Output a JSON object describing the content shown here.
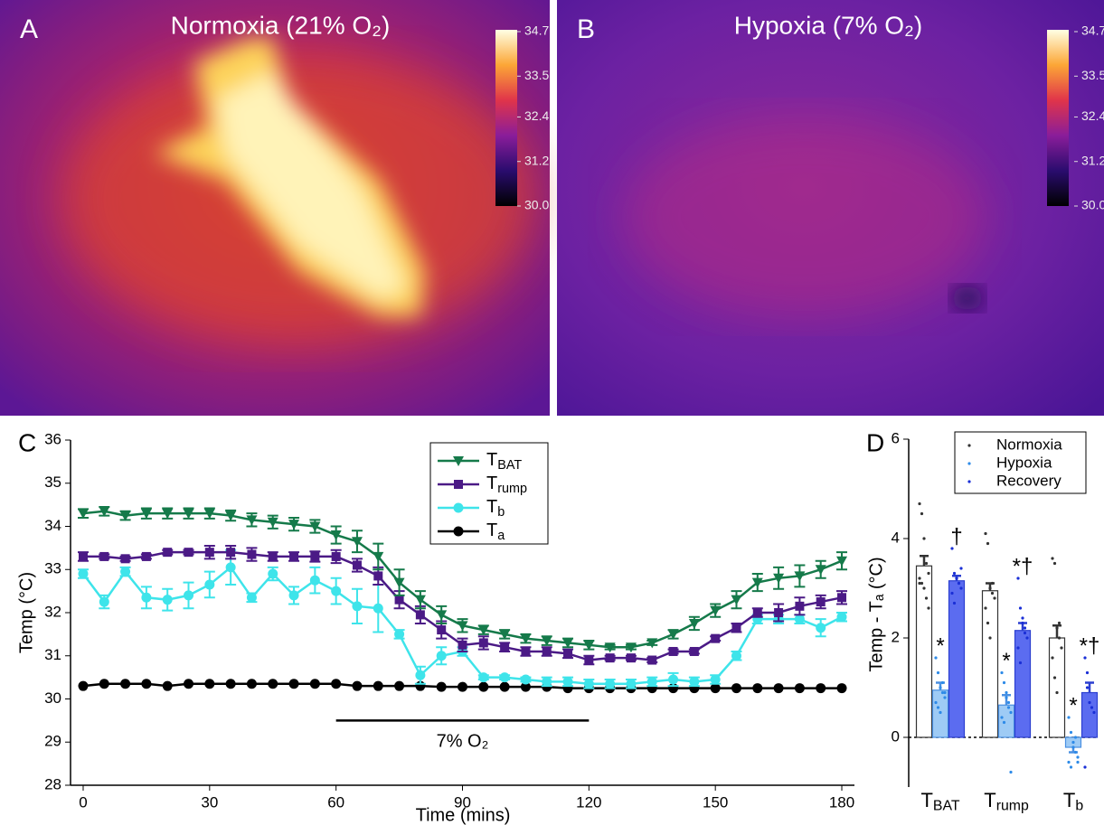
{
  "chart_data": [
    {
      "type": "thermal-image",
      "panel_label": "A",
      "title": "Normoxia (21% O₂)",
      "clim": [
        30,
        34.7
      ],
      "colorbar_ticks": [
        34.7,
        33.5,
        32.4,
        31.2,
        {
          "value": 30,
          "label": "30.0"
        }
      ]
    },
    {
      "type": "thermal-image",
      "panel_label": "B",
      "title": "Hypoxia (7% O₂)",
      "clim": [
        30,
        34.7
      ],
      "colorbar_ticks": [
        34.7,
        33.5,
        32.4,
        31.2,
        {
          "value": 30,
          "label": "30.0"
        }
      ]
    },
    {
      "type": "line",
      "panel_label": "C",
      "x_label": "Time (mins)",
      "y_label": "Temp (°C)",
      "xlim": [
        -3,
        183
      ],
      "xticks": [
        0,
        30,
        60,
        90,
        120,
        150,
        180
      ],
      "ylim": [
        28,
        36
      ],
      "yticks": [
        28,
        29,
        30,
        31,
        32,
        33,
        34,
        35,
        36
      ],
      "x": [
        0,
        5,
        10,
        15,
        20,
        25,
        30,
        35,
        40,
        45,
        50,
        55,
        60,
        65,
        70,
        75,
        80,
        85,
        90,
        95,
        100,
        105,
        110,
        115,
        120,
        125,
        130,
        135,
        140,
        145,
        150,
        155,
        160,
        165,
        170,
        175,
        180
      ],
      "series": [
        {
          "name": "TBAT",
          "color": "#157a4a",
          "marker": "triangle-down",
          "values": [
            34.3,
            34.35,
            34.25,
            34.3,
            34.3,
            34.3,
            34.3,
            34.25,
            34.15,
            34.1,
            34.05,
            34.0,
            33.8,
            33.65,
            33.3,
            32.7,
            32.3,
            31.95,
            31.7,
            31.6,
            31.5,
            31.4,
            31.35,
            31.3,
            31.25,
            31.2,
            31.2,
            31.3,
            31.5,
            31.75,
            32.05,
            32.3,
            32.7,
            32.8,
            32.85,
            33.0,
            33.2
          ],
          "errors": [
            0.1,
            0.1,
            0.1,
            0.12,
            0.12,
            0.12,
            0.12,
            0.12,
            0.15,
            0.15,
            0.15,
            0.15,
            0.2,
            0.25,
            0.3,
            0.3,
            0.2,
            0.2,
            0.15,
            0.1,
            0.1,
            0.1,
            0.1,
            0.1,
            0.1,
            0.05,
            0.05,
            0.05,
            0.1,
            0.15,
            0.15,
            0.2,
            0.2,
            0.25,
            0.25,
            0.2,
            0.2
          ]
        },
        {
          "name": "Trump",
          "color": "#4b1a86",
          "marker": "square",
          "values": [
            33.3,
            33.3,
            33.25,
            33.3,
            33.4,
            33.4,
            33.4,
            33.4,
            33.35,
            33.3,
            33.3,
            33.3,
            33.3,
            33.1,
            32.85,
            32.3,
            31.95,
            31.6,
            31.25,
            31.3,
            31.2,
            31.1,
            31.1,
            31.05,
            30.9,
            30.95,
            30.95,
            30.9,
            31.1,
            31.1,
            31.4,
            31.65,
            32.0,
            32.0,
            32.15,
            32.25,
            32.35
          ],
          "errors": [
            0.1,
            0.05,
            0.05,
            0.05,
            0.05,
            0.05,
            0.15,
            0.15,
            0.15,
            0.1,
            0.1,
            0.12,
            0.15,
            0.15,
            0.2,
            0.2,
            0.2,
            0.2,
            0.15,
            0.15,
            0.1,
            0.1,
            0.1,
            0.1,
            0.1,
            0.05,
            0.05,
            0.05,
            0.05,
            0.05,
            0.05,
            0.1,
            0.1,
            0.2,
            0.2,
            0.15,
            0.15
          ]
        },
        {
          "name": "Tb",
          "color": "#3ee4ea",
          "marker": "circle",
          "values": [
            32.9,
            32.25,
            32.95,
            32.35,
            32.3,
            32.4,
            32.65,
            33.05,
            32.35,
            32.9,
            32.4,
            32.75,
            32.5,
            32.15,
            32.1,
            31.5,
            30.55,
            31.0,
            31.1,
            30.5,
            30.5,
            30.45,
            30.4,
            30.4,
            30.35,
            30.35,
            30.35,
            30.4,
            30.45,
            30.4,
            30.45,
            31.0,
            31.85,
            31.85,
            31.85,
            31.65,
            31.9
          ],
          "errors": [
            0.1,
            0.15,
            0.1,
            0.25,
            0.25,
            0.3,
            0.3,
            0.4,
            0.1,
            0.15,
            0.2,
            0.3,
            0.3,
            0.4,
            0.55,
            0.1,
            0.2,
            0.2,
            0.1,
            0.05,
            0.05,
            0.05,
            0.1,
            0.1,
            0.1,
            0.1,
            0.1,
            0.1,
            0.15,
            0.1,
            0.1,
            0.1,
            0.1,
            0.1,
            0.1,
            0.2,
            0.1
          ]
        },
        {
          "name": "Ta",
          "color": "#000000",
          "marker": "circle",
          "values": [
            30.3,
            30.35,
            30.35,
            30.35,
            30.3,
            30.35,
            30.35,
            30.35,
            30.35,
            30.35,
            30.35,
            30.35,
            30.35,
            30.3,
            30.3,
            30.3,
            30.3,
            30.28,
            30.28,
            30.28,
            30.28,
            30.28,
            30.28,
            30.25,
            30.25,
            30.25,
            30.25,
            30.25,
            30.25,
            30.25,
            30.25,
            30.25,
            30.25,
            30.25,
            30.25,
            30.25,
            30.25
          ]
        }
      ],
      "annotation": {
        "text": "7% O₂",
        "x": [
          60,
          120
        ],
        "y": 29.5
      }
    },
    {
      "type": "bar",
      "panel_label": "D",
      "y_label": "Temp - Tₐ (°C)",
      "categories": [
        "TBAT",
        "Trump",
        "Tb"
      ],
      "ylim": [
        -1,
        6
      ],
      "yticks": [
        0,
        2,
        4,
        6
      ],
      "series": [
        {
          "name": "Normoxia",
          "color": "#ffffff",
          "edge": "#333333",
          "dot": "#333333",
          "values": [
            3.45,
            2.95,
            2.0
          ],
          "errors": [
            0.2,
            0.15,
            0.25
          ],
          "points": [
            [
              4.7,
              4.5,
              4.0,
              3.5,
              3.3,
              3.2,
              3.1,
              3.0,
              2.8,
              2.6,
              3.1
            ],
            [
              4.1,
              3.9,
              3.0,
              2.9,
              2.8,
              2.6,
              2.3,
              2.0,
              3.1
            ],
            [
              3.6,
              3.5,
              2.2,
              2.0,
              1.8,
              1.6,
              1.2,
              0.9,
              2.3
            ]
          ]
        },
        {
          "name": "Hypoxia",
          "color": "#9ecbf5",
          "edge": "#4a90e2",
          "dot": "#2e8be8",
          "values": [
            0.95,
            0.65,
            -0.2
          ],
          "errors": [
            0.15,
            0.2,
            0.1
          ],
          "points": [
            [
              1.6,
              1.3,
              1.0,
              0.9,
              0.8,
              0.7,
              0.6,
              0.5,
              1.1,
              0.9
            ],
            [
              1.3,
              1.1,
              0.8,
              0.6,
              0.5,
              0.4,
              0.3,
              0.9,
              0.7,
              -0.7
            ],
            [
              0.4,
              0.1,
              -0.1,
              -0.3,
              -0.4,
              -0.5,
              -0.6,
              -0.2,
              0.0,
              -0.5
            ]
          ]
        },
        {
          "name": "Recovery",
          "color": "#5b6cf0",
          "edge": "#2b3fd0",
          "dot": "#1a2fd6",
          "values": [
            3.15,
            2.15,
            0.9
          ],
          "errors": [
            0.1,
            0.15,
            0.2
          ],
          "points": [
            [
              3.8,
              3.3,
              3.2,
              3.1,
              3.0,
              2.9,
              2.7,
              3.2,
              3.1,
              3.4
            ],
            [
              3.2,
              2.6,
              2.4,
              2.2,
              2.0,
              1.8,
              1.5,
              2.3,
              2.1
            ],
            [
              1.6,
              1.3,
              0.7,
              0.6,
              0.5,
              -0.6,
              1.0
            ]
          ]
        }
      ],
      "annotations": [
        {
          "series": 1,
          "category": 0,
          "text": "*"
        },
        {
          "series": 1,
          "category": 1,
          "text": "*"
        },
        {
          "series": 1,
          "category": 2,
          "text": "*"
        },
        {
          "series": 2,
          "category": 0,
          "text": "†"
        },
        {
          "series": 2,
          "category": 1,
          "text": "*†"
        },
        {
          "series": 2,
          "category": 2,
          "text": "*†"
        }
      ]
    }
  ]
}
